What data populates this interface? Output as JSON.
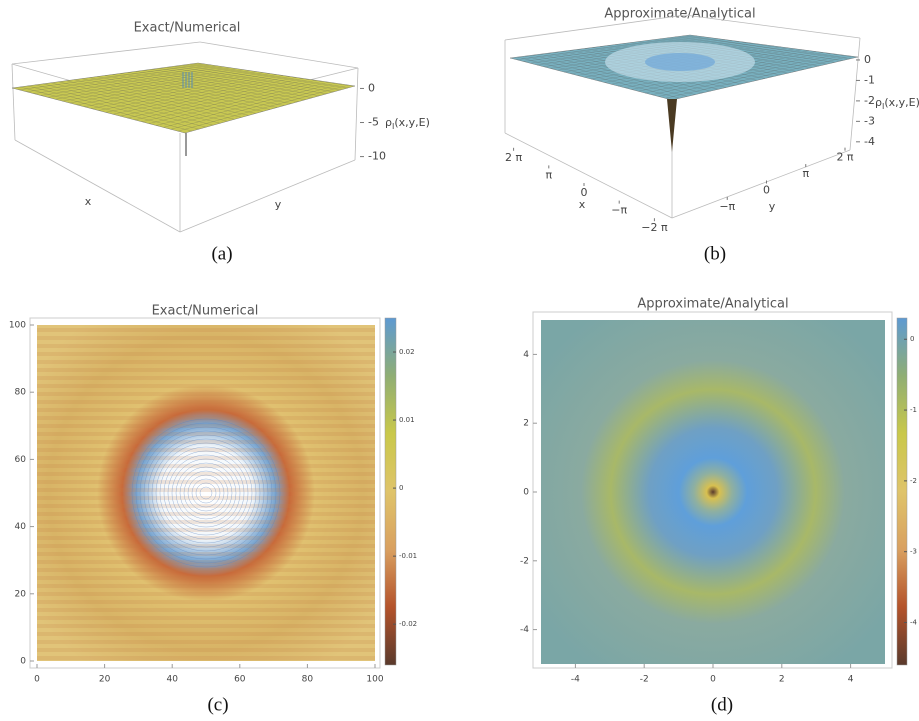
{
  "chart_data": [
    {
      "type": "surface3d",
      "title": "Exact/Numerical",
      "caption": "(a)",
      "x_label": "x",
      "y_label": "y",
      "z_label": {
        "symbol": "ρ",
        "subscript": "I",
        "args": "(x,y,E)"
      },
      "zlim": [
        -10.5,
        3
      ],
      "zticks": [
        0,
        -5,
        -10
      ],
      "color": "#c8c852"
    },
    {
      "type": "surface3d",
      "title": "Approximate/Analytical",
      "caption": "(b)",
      "x_label": "x",
      "y_label": "y",
      "z_label": {
        "symbol": "ρ",
        "subscript": "I",
        "args": "(x,y,E)"
      },
      "zlim": [
        -4.4,
        1
      ],
      "zticks": [
        0,
        -1,
        -2,
        -3,
        -4
      ],
      "xlim": [
        -6.6,
        6.6
      ],
      "xticks": [
        {
          "value": 6.28,
          "label": "2 π"
        },
        {
          "value": 3.14,
          "label": "π"
        },
        0,
        {
          "value": -3.14,
          "label": "−π"
        },
        {
          "value": -6.28,
          "label": "−2 π"
        }
      ],
      "ylim": [
        -6.6,
        6.6
      ],
      "yticks": [
        {
          "value": 6.28,
          "label": "2 π"
        },
        {
          "value": 3.14,
          "label": "π"
        },
        0,
        {
          "value": -3.14,
          "label": "−π"
        }
      ],
      "color": "#78b0bf"
    },
    {
      "type": "density",
      "title": "Exact/Numerical",
      "caption": "(c)",
      "xlim": [
        0,
        100
      ],
      "xticks": [
        0,
        20,
        40,
        60,
        80,
        100
      ],
      "ylim": [
        0,
        100
      ],
      "yticks": [
        0,
        20,
        40,
        60,
        80,
        100
      ],
      "colorbar_lim": [
        -0.026,
        0.025
      ],
      "colorbar_ticks": [
        0.02,
        0.01,
        0,
        -0.01,
        -0.02
      ],
      "colorbar_colors": [
        "#5a3a2c",
        "#b4532b",
        "#d9a060",
        "#dfc46a",
        "#c9c84a",
        "#8fae74",
        "#5e9ad2"
      ]
    },
    {
      "type": "density",
      "title": "Approximate/Analytical",
      "caption": "(d)",
      "xlim": [
        -5,
        5
      ],
      "xticks": [
        -4,
        -2,
        0,
        2,
        4
      ],
      "ylim": [
        -5,
        5
      ],
      "yticks": [
        -4,
        -2,
        0,
        2,
        4
      ],
      "colorbar_lim": [
        -4.6,
        0.3
      ],
      "colorbar_ticks": [
        0,
        -1,
        -2,
        -3,
        -4
      ],
      "colorbar_colors": [
        "#5a3a2c",
        "#b4532b",
        "#d9a060",
        "#dfc46a",
        "#c9c84a",
        "#8fae74",
        "#5e9ad2"
      ]
    }
  ]
}
